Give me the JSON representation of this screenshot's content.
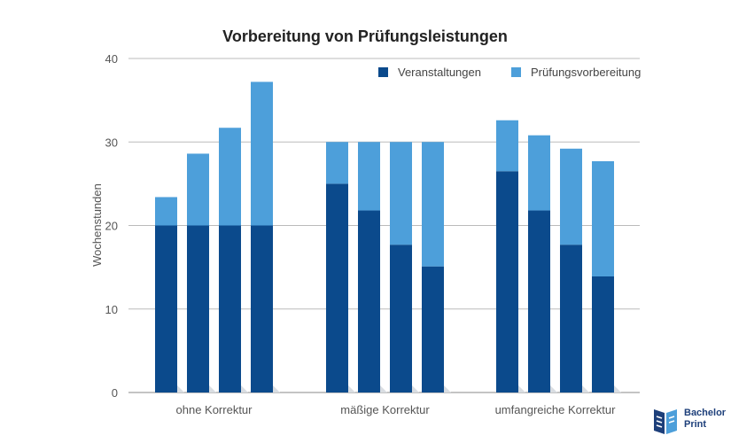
{
  "chart_data": {
    "type": "bar",
    "stacked": true,
    "title": "Vorbereitung von Prüfungsleistungen",
    "xlabel": "",
    "ylabel": "Wochenstunden",
    "ylim": [
      0,
      40
    ],
    "yticks": [
      0,
      10,
      20,
      30,
      40
    ],
    "grid": true,
    "legend_position": "top-right",
    "groups": [
      "ohne Korrektur",
      "mäßige Korrektur",
      "umfangreiche Korrektur"
    ],
    "bars_per_group": 4,
    "series": [
      {
        "name": "Veranstaltungen",
        "color": "#0b4a8c",
        "values": [
          20,
          20,
          20,
          20,
          25,
          21.8,
          17.7,
          15.1,
          26.5,
          21.8,
          17.7,
          13.9
        ]
      },
      {
        "name": "Prüfungsvorbereitung",
        "color": "#4d9fda",
        "values": [
          3.4,
          8.6,
          11.7,
          17.2,
          5,
          8.2,
          12.3,
          14.9,
          6.1,
          9.0,
          11.5,
          13.8
        ]
      }
    ]
  },
  "logo": {
    "line1": "Bachelor",
    "line2": "Print"
  },
  "colors": {
    "grid": "#bbbbbb",
    "axis": "#888888"
  }
}
